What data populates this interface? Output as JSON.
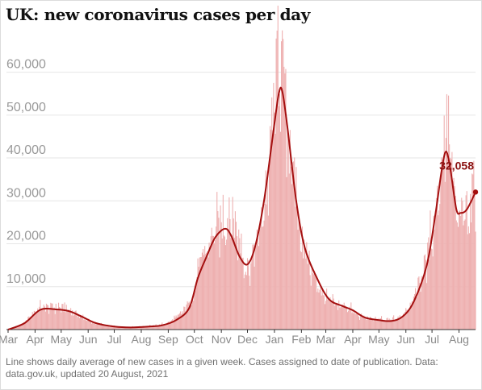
{
  "title": "UK: new coronavirus cases per day",
  "footer": "Line shows daily average of new cases in a given week. Cases assigned to date of publication. Data: data.gov.uk, updated 20 August, 2021",
  "colors": {
    "bars": "#eeb0b0",
    "line": "#a40f0f",
    "grid": "#e6e6e6",
    "axis": "#333333"
  },
  "chart_data": {
    "type": "bar",
    "x_axis": {
      "start": "2020-03-01",
      "end": "2021-08-20",
      "tick_labels": [
        "Mar",
        "Apr",
        "May",
        "Jun",
        "Jul",
        "Aug",
        "Sep",
        "Oct",
        "Nov",
        "Dec",
        "Jan",
        "Feb",
        "Mar",
        "Apr",
        "May",
        "Jun",
        "Jul",
        "Aug"
      ],
      "tick_dates": [
        "2020-03-01",
        "2020-04-01",
        "2020-05-01",
        "2020-06-01",
        "2020-07-01",
        "2020-08-01",
        "2020-09-01",
        "2020-10-01",
        "2020-11-01",
        "2020-12-01",
        "2021-01-01",
        "2021-02-01",
        "2021-03-01",
        "2021-04-01",
        "2021-05-01",
        "2021-06-01",
        "2021-07-01",
        "2021-08-01"
      ]
    },
    "y_axis": {
      "ylim": [
        0,
        68000
      ],
      "ticks": [
        10000,
        20000,
        30000,
        40000,
        50000,
        60000
      ],
      "tick_labels": [
        "10,000",
        "20,000",
        "30,000",
        "40,000",
        "50,000",
        "60,000"
      ]
    },
    "grid": true,
    "daily_cases_anchors": [
      [
        "2020-03-01",
        0
      ],
      [
        "2020-03-20",
        1500
      ],
      [
        "2020-04-05",
        5000
      ],
      [
        "2020-04-20",
        5200
      ],
      [
        "2020-05-05",
        5000
      ],
      [
        "2020-05-20",
        3500
      ],
      [
        "2020-06-05",
        1700
      ],
      [
        "2020-06-20",
        1000
      ],
      [
        "2020-07-10",
        600
      ],
      [
        "2020-08-01",
        700
      ],
      [
        "2020-08-20",
        1000
      ],
      [
        "2020-09-01",
        1500
      ],
      [
        "2020-09-15",
        3500
      ],
      [
        "2020-09-30",
        7500
      ],
      [
        "2020-10-05",
        14000
      ],
      [
        "2020-10-15",
        18000
      ],
      [
        "2020-10-25",
        23000
      ],
      [
        "2020-11-05",
        25000
      ],
      [
        "2020-11-12",
        27000
      ],
      [
        "2020-11-20",
        22000
      ],
      [
        "2020-11-30",
        14000
      ],
      [
        "2020-12-05",
        15000
      ],
      [
        "2020-12-15",
        22000
      ],
      [
        "2020-12-25",
        35000
      ],
      [
        "2021-01-01",
        53000
      ],
      [
        "2021-01-05",
        61000
      ],
      [
        "2021-01-08",
        64000
      ],
      [
        "2021-01-12",
        55000
      ],
      [
        "2021-01-20",
        40000
      ],
      [
        "2021-01-31",
        22000
      ],
      [
        "2021-02-15",
        12000
      ],
      [
        "2021-03-01",
        7000
      ],
      [
        "2021-03-15",
        5500
      ],
      [
        "2021-03-25",
        5500
      ],
      [
        "2021-04-05",
        3500
      ],
      [
        "2021-04-20",
        2500
      ],
      [
        "2021-05-10",
        2200
      ],
      [
        "2021-05-25",
        2700
      ],
      [
        "2021-06-10",
        7000
      ],
      [
        "2021-06-25",
        16000
      ],
      [
        "2021-07-05",
        27000
      ],
      [
        "2021-07-12",
        37000
      ],
      [
        "2021-07-17",
        48000
      ],
      [
        "2021-07-22",
        40000
      ],
      [
        "2021-07-30",
        24000
      ],
      [
        "2021-08-05",
        26000
      ],
      [
        "2021-08-12",
        28000
      ],
      [
        "2021-08-20",
        34000
      ]
    ],
    "average_line_anchors": [
      [
        "2020-03-01",
        0
      ],
      [
        "2020-03-20",
        1500
      ],
      [
        "2020-04-07",
        4600
      ],
      [
        "2020-04-25",
        4700
      ],
      [
        "2020-05-10",
        4300
      ],
      [
        "2020-05-25",
        3000
      ],
      [
        "2020-06-10",
        1500
      ],
      [
        "2020-07-01",
        700
      ],
      [
        "2020-07-20",
        500
      ],
      [
        "2020-08-10",
        700
      ],
      [
        "2020-08-25",
        1000
      ],
      [
        "2020-09-10",
        2200
      ],
      [
        "2020-09-25",
        5000
      ],
      [
        "2020-10-05",
        12000
      ],
      [
        "2020-10-15",
        17000
      ],
      [
        "2020-10-25",
        21500
      ],
      [
        "2020-11-05",
        23500
      ],
      [
        "2020-11-12",
        22000
      ],
      [
        "2020-11-22",
        17000
      ],
      [
        "2020-12-01",
        15200
      ],
      [
        "2020-12-10",
        19500
      ],
      [
        "2020-12-20",
        30000
      ],
      [
        "2020-12-30",
        45000
      ],
      [
        "2021-01-06",
        55000
      ],
      [
        "2021-01-10",
        55500
      ],
      [
        "2021-01-16",
        47000
      ],
      [
        "2021-01-26",
        30000
      ],
      [
        "2021-02-05",
        19000
      ],
      [
        "2021-02-20",
        11500
      ],
      [
        "2021-03-05",
        7000
      ],
      [
        "2021-03-20",
        5500
      ],
      [
        "2021-04-01",
        4500
      ],
      [
        "2021-04-15",
        2800
      ],
      [
        "2021-05-01",
        2200
      ],
      [
        "2021-05-15",
        2000
      ],
      [
        "2021-05-28",
        3000
      ],
      [
        "2021-06-10",
        6500
      ],
      [
        "2021-06-25",
        15000
      ],
      [
        "2021-07-05",
        27000
      ],
      [
        "2021-07-12",
        37000
      ],
      [
        "2021-07-17",
        41500
      ],
      [
        "2021-07-22",
        37500
      ],
      [
        "2021-07-29",
        28000
      ],
      [
        "2021-08-03",
        27200
      ],
      [
        "2021-08-10",
        28000
      ],
      [
        "2021-08-20",
        32058
      ]
    ],
    "end_label": "32,058",
    "end_value": 32058
  }
}
